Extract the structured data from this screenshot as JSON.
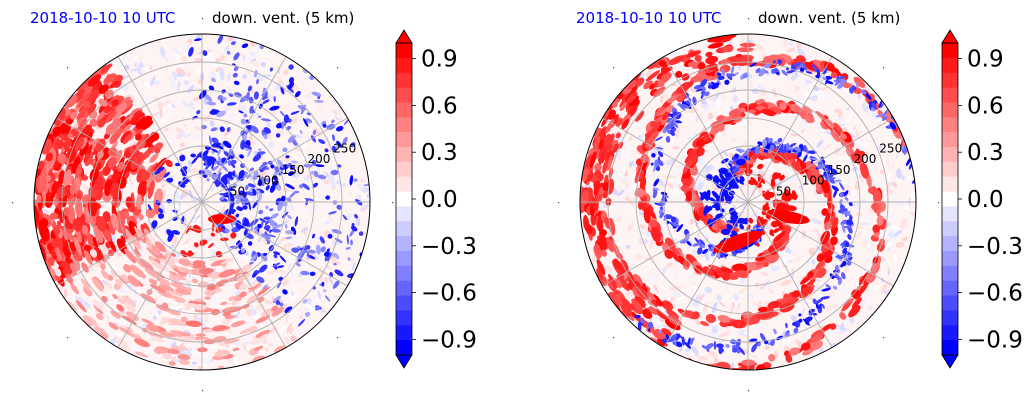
{
  "chart_data": [
    {
      "type": "heatmap",
      "date_label": "2018-10-10 10 UTC",
      "variable_label": "down. vent. (5 km)",
      "projection": "polar",
      "radial_ticks": [
        50,
        100,
        150,
        200,
        250
      ],
      "angular_gridlines_deg": [
        0,
        30,
        60,
        90,
        120,
        150,
        180,
        210,
        240,
        270,
        300,
        330
      ],
      "grid": true,
      "colormap": "blue-white-red (bwr)",
      "colorbar": {
        "ticks": [
          "0.9",
          "0.6",
          "0.3",
          "0.0",
          "−0.3",
          "−0.6",
          "−0.9"
        ],
        "range": [
          -1.0,
          1.0
        ],
        "extend": "both",
        "levels": 21
      },
      "colors": {
        "positive": "#ff0000",
        "negative": "#0000ff",
        "zero": "#ffffff",
        "title_date": "#0000ff"
      }
    },
    {
      "type": "heatmap",
      "date_label": "2018-10-10 10 UTC",
      "variable_label": "down. vent. (5 km)",
      "projection": "polar",
      "radial_ticks": [
        50,
        100,
        150,
        200,
        250
      ],
      "angular_gridlines_deg": [
        0,
        30,
        60,
        90,
        120,
        150,
        180,
        210,
        240,
        270,
        300,
        330
      ],
      "grid": true,
      "colormap": "blue-white-red (bwr)",
      "colorbar": {
        "ticks": [
          "0.9",
          "0.6",
          "0.3",
          "0.0",
          "−0.3",
          "−0.6",
          "−0.9"
        ],
        "range": [
          -1.0,
          1.0
        ],
        "extend": "both",
        "levels": 21
      },
      "colors": {
        "positive": "#ff0000",
        "negative": "#0000ff",
        "zero": "#ffffff",
        "title_date": "#0000ff"
      }
    }
  ]
}
